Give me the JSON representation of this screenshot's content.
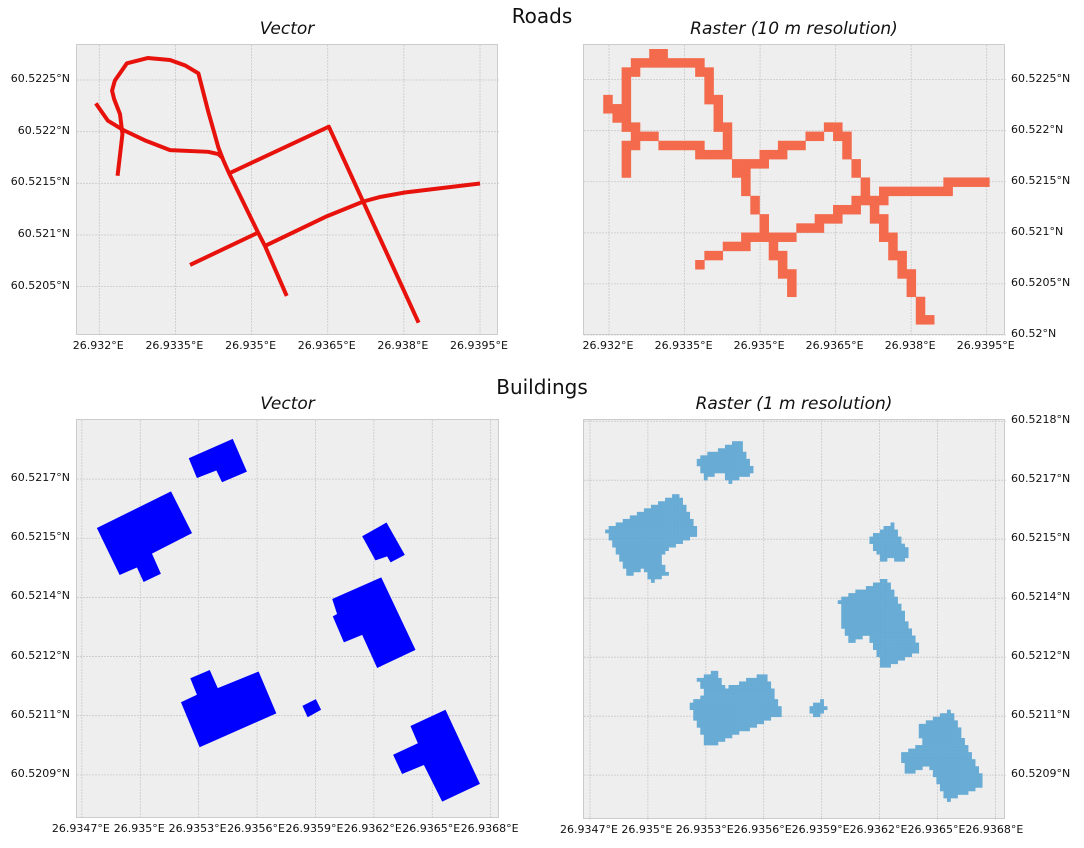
{
  "figure": {
    "roads_title": "Roads",
    "buildings_title": "Buildings"
  },
  "chart_data": [
    {
      "type": "map",
      "title": "Vector",
      "grid": true,
      "xlim": [
        26.931561,
        26.939874
      ],
      "ylim": [
        60.520022,
        60.522839
      ],
      "xticks": {
        "values": [
          26.932,
          26.9335,
          26.935,
          26.9365,
          26.938,
          26.9395
        ],
        "labels": [
          "26.932°E",
          "26.9335°E",
          "26.935°E",
          "26.9365°E",
          "26.938°E",
          "26.9395°E"
        ]
      },
      "yticks": {
        "values": [
          60.5205,
          60.521,
          60.5215,
          60.522,
          60.5225
        ],
        "labels": [
          "60.5205°N",
          "60.521°N",
          "60.5215°N",
          "60.522°N",
          "60.5225°N"
        ]
      },
      "yaxis_side": "left",
      "line_color": "#e8120c",
      "lines": [
        [
          [
            26.93236,
            60.521573
          ],
          [
            26.932456,
            60.521977
          ],
          [
            26.932408,
            60.52217
          ],
          [
            26.932292,
            60.522316
          ],
          [
            26.932252,
            60.522397
          ],
          [
            26.932306,
            60.522494
          ],
          [
            26.932544,
            60.522662
          ],
          [
            26.932952,
            60.522713
          ],
          [
            26.933394,
            60.522694
          ],
          [
            26.9337,
            60.522639
          ],
          [
            26.933952,
            60.522565
          ],
          [
            26.934142,
            60.522203
          ],
          [
            26.934346,
            60.521847
          ],
          [
            26.934448,
            60.521718
          ],
          [
            26.93455,
            60.521605
          ],
          [
            26.935128,
            60.521023
          ],
          [
            26.935264,
            60.520894
          ],
          [
            26.935692,
            60.52041
          ]
        ],
        [
          [
            26.931932,
            60.522274
          ],
          [
            26.93217,
            60.522106
          ],
          [
            26.932476,
            60.522015
          ],
          [
            26.932918,
            60.521912
          ],
          [
            26.933394,
            60.521821
          ],
          [
            26.934142,
            60.521805
          ],
          [
            26.934346,
            60.521783
          ],
          [
            26.934428,
            60.521744
          ]
        ],
        [
          [
            26.93455,
            60.521595
          ],
          [
            26.936522,
            60.522048
          ],
          [
            26.93829,
            60.520151
          ]
        ],
        [
          [
            26.933788,
            60.52071
          ],
          [
            26.935128,
            60.521023
          ]
        ],
        [
          [
            26.935264,
            60.520894
          ],
          [
            26.936454,
            60.521175
          ],
          [
            26.937202,
            60.521324
          ],
          [
            26.937542,
            60.521369
          ],
          [
            26.938018,
            60.521411
          ],
          [
            26.9395,
            60.521498
          ]
        ]
      ]
    },
    {
      "type": "heatmap",
      "title": "Raster (10 m resolution)",
      "grid": true,
      "cell_size_m": 10,
      "xlim": [
        26.931503,
        26.939883
      ],
      "ylim": [
        60.51999,
        60.522839
      ],
      "xticks": {
        "values": [
          26.932,
          26.9335,
          26.935,
          26.9365,
          26.938,
          26.9395
        ],
        "labels": [
          "26.932°E",
          "26.9335°E",
          "26.935°E",
          "26.9365°E",
          "26.938°E",
          "26.9395°E"
        ]
      },
      "yticks": {
        "values": [
          60.52,
          60.5205,
          60.521,
          60.5215,
          60.522,
          60.5225
        ],
        "labels": [
          "60.52°N",
          "60.5205°N",
          "60.521°N",
          "60.5215°N",
          "60.522°N",
          "60.5225°N"
        ]
      },
      "yaxis_side": "right",
      "cell_color": "#f36a4c"
    },
    {
      "type": "map",
      "title": "Vector",
      "grid": true,
      "xlim": [
        26.934675,
        26.936848
      ],
      "ylim": [
        60.520788,
        60.5218
      ],
      "xticks": {
        "values": [
          26.9347,
          26.935,
          26.9353,
          26.9356,
          26.9359,
          26.9362,
          26.9365,
          26.9368
        ],
        "labels": [
          "26.9347°E",
          "26.935°E",
          "26.9353°E",
          "26.9356°E",
          "26.9359°E",
          "26.9362°E",
          "26.9365°E",
          "26.9368°E"
        ]
      },
      "yticks": {
        "values": [
          60.5209,
          60.52105,
          60.5212,
          60.52135,
          60.5215,
          60.52165
        ],
        "labels": [
          "60.5209°N",
          "60.5211°N",
          "60.5212°N",
          "60.5214°N",
          "60.5215°N",
          "60.5217°N"
        ]
      },
      "yaxis_side": "left",
      "fill_color": "#0000ff",
      "polygons": [
        [
          [
            26.934777,
            60.521526
          ],
          [
            26.935158,
            60.521619
          ],
          [
            26.935266,
            60.521513
          ],
          [
            26.93506,
            60.521461
          ],
          [
            26.935106,
            60.52141
          ],
          [
            26.935017,
            60.521389
          ],
          [
            26.934983,
            60.521426
          ],
          [
            26.934894,
            60.521407
          ]
        ],
        [
          [
            26.935249,
            60.521703
          ],
          [
            26.935475,
            60.521752
          ],
          [
            26.935548,
            60.521669
          ],
          [
            26.93542,
            60.521642
          ],
          [
            26.935391,
            60.521672
          ],
          [
            26.935291,
            60.521653
          ]
        ],
        [
          [
            26.93614,
            60.521505
          ],
          [
            26.936265,
            60.52154
          ],
          [
            26.936359,
            60.521458
          ],
          [
            26.936286,
            60.521439
          ],
          [
            26.936268,
            60.521454
          ],
          [
            26.936208,
            60.521444
          ]
        ],
        [
          [
            26.935986,
            60.521346
          ],
          [
            26.936238,
            60.521401
          ],
          [
            26.936414,
            60.521217
          ],
          [
            26.936217,
            60.521171
          ],
          [
            26.93614,
            60.521255
          ],
          [
            26.936046,
            60.521236
          ],
          [
            26.935989,
            60.521302
          ],
          [
            26.936011,
            60.521308
          ]
        ],
        [
          [
            26.935209,
            60.521084
          ],
          [
            26.935291,
            60.521103
          ],
          [
            26.935257,
            60.521145
          ],
          [
            26.935357,
            60.521166
          ],
          [
            26.935398,
            60.52112
          ],
          [
            26.935608,
            60.521162
          ],
          [
            26.935699,
            60.521056
          ],
          [
            26.935305,
            60.52097
          ]
        ],
        [
          [
            26.935833,
            60.521075
          ],
          [
            26.935902,
            60.521092
          ],
          [
            26.935929,
            60.521065
          ],
          [
            26.93586,
            60.521046
          ]
        ],
        [
          [
            26.936388,
            60.521024
          ],
          [
            26.936568,
            60.521065
          ],
          [
            26.936745,
            60.520877
          ],
          [
            26.936551,
            60.520832
          ],
          [
            26.936457,
            60.520925
          ],
          [
            26.936345,
            60.520902
          ],
          [
            26.936299,
            60.520951
          ],
          [
            26.936426,
            60.52098
          ]
        ]
      ]
    },
    {
      "type": "heatmap",
      "title": "Raster (1 m resolution)",
      "grid": true,
      "cell_size_m": 1,
      "xlim": [
        26.934669,
        26.936855
      ],
      "ylim": [
        60.520786,
        60.521803
      ],
      "xticks": {
        "values": [
          26.9347,
          26.935,
          26.9353,
          26.9356,
          26.9359,
          26.9362,
          26.9365,
          26.9368
        ],
        "labels": [
          "26.9347°E",
          "26.935°E",
          "26.9353°E",
          "26.9356°E",
          "26.9359°E",
          "26.9362°E",
          "26.9365°E",
          "26.9368°E"
        ]
      },
      "yticks": {
        "values": [
          60.5209,
          60.52105,
          60.5212,
          60.52135,
          60.5215,
          60.52165,
          60.5218
        ],
        "labels": [
          "60.5209°N",
          "60.5211°N",
          "60.5212°N",
          "60.5214°N",
          "60.5215°N",
          "60.5217°N",
          "60.5218°N"
        ]
      },
      "yaxis_side": "right",
      "cell_color": "#68acd5"
    }
  ]
}
